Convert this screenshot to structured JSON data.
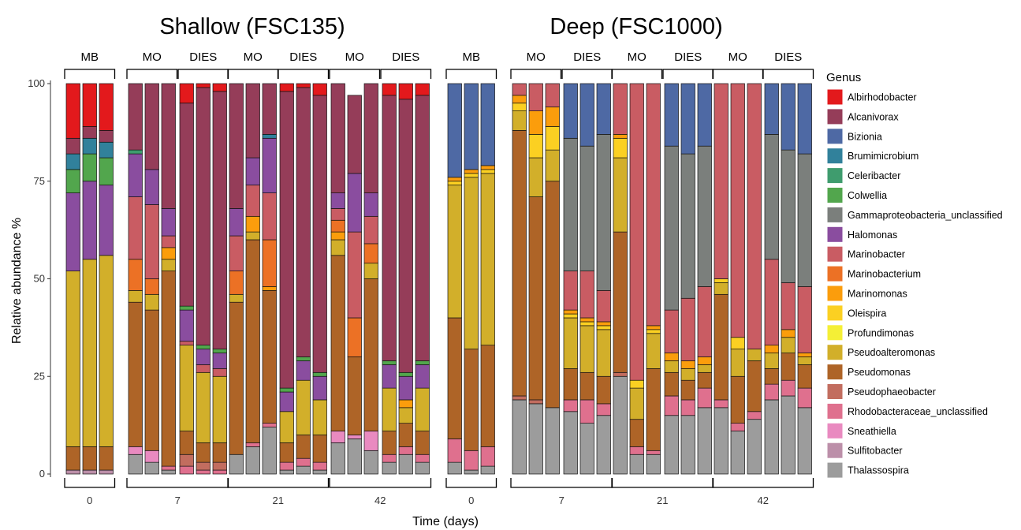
{
  "chart_data": {
    "type": "bar",
    "stacked": true,
    "ylabel": "Relative abundance %",
    "xlabel": "Time (days)",
    "ylim": [
      0,
      100
    ],
    "yticks": [
      0,
      25,
      50,
      75,
      100
    ],
    "legend": {
      "title": "Genus",
      "position": "right"
    },
    "genera": [
      "Albirhodobacter",
      "Alcanivorax",
      "Bizionia",
      "Brumimicrobium",
      "Celeribacter",
      "Colwellia",
      "Gammaproteobacteria_unclassified",
      "Halomonas",
      "Marinobacter",
      "Marinobacterium",
      "Marinomonas",
      "Oleispira",
      "Profundimonas",
      "Pseudoalteromonas",
      "Pseudomonas",
      "Pseudophaeobacter",
      "Rhodobacteraceae_unclassified",
      "Sneathiella",
      "Sulfitobacter",
      "Thalassospira"
    ],
    "colors": {
      "Albirhodobacter": "#e3191c",
      "Alcanivorax": "#953d59",
      "Bizionia": "#4e69a4",
      "Brumimicrobium": "#31819b",
      "Celeribacter": "#3f9c6e",
      "Colwellia": "#52a64d",
      "Gammaproteobacteria_unclassified": "#7b7f7c",
      "Halomonas": "#8a4d9f",
      "Marinobacter": "#c95c63",
      "Marinobacterium": "#ec7125",
      "Marinomonas": "#fb9d0c",
      "Oleispira": "#fbd022",
      "Profundimonas": "#f4ef36",
      "Pseudoalteromonas": "#d2af2a",
      "Pseudomonas": "#ae6427",
      "Pseudophaeobacter": "#c26d5f",
      "Rhodobacteraceae_unclassified": "#df708e",
      "Sneathiella": "#e98ac0",
      "Sulfitobacter": "#bc8fa9",
      "Thalassospira": "#9c9c9c"
    },
    "panels": [
      {
        "title": "Shallow (FSC135)",
        "groups": [
          {
            "label": "MB",
            "day": "0",
            "bars": [
              {
                "Sulfitobacter": 1,
                "Pseudomonas": 6,
                "Pseudoalteromonas": 45,
                "Halomonas": 20,
                "Colwellia": 6,
                "Brumimicrobium": 4,
                "Alcanivorax": 4,
                "Albirhodobacter": 14
              },
              {
                "Sulfitobacter": 1,
                "Pseudomonas": 6,
                "Pseudoalteromonas": 48,
                "Halomonas": 20,
                "Colwellia": 7,
                "Brumimicrobium": 4,
                "Alcanivorax": 3,
                "Albirhodobacter": 11
              },
              {
                "Sulfitobacter": 1,
                "Pseudomonas": 6,
                "Pseudoalteromonas": 49,
                "Halomonas": 18,
                "Colwellia": 7,
                "Brumimicrobium": 4,
                "Alcanivorax": 3,
                "Albirhodobacter": 12
              }
            ]
          },
          {
            "label": "MO",
            "day": "7",
            "bars": [
              {
                "Thalassospira": 5,
                "Sneathiella": 2,
                "Pseudomonas": 37,
                "Pseudoalteromonas": 3,
                "Marinobacterium": 8,
                "Marinobacter": 16,
                "Halomonas": 11,
                "Celeribacter": 1,
                "Alcanivorax": 17
              },
              {
                "Thalassospira": 3,
                "Sneathiella": 3,
                "Pseudomonas": 36,
                "Pseudoalteromonas": 4,
                "Marinobacterium": 4,
                "Marinobacter": 19,
                "Halomonas": 9,
                "Alcanivorax": 22
              },
              {
                "Thalassospira": 1,
                "Rhodobacteraceae_unclassified": 1,
                "Pseudomonas": 50,
                "Pseudoalteromonas": 3,
                "Marinomonas": 3,
                "Marinobacter": 3,
                "Halomonas": 7,
                "Alcanivorax": 32
              }
            ]
          },
          {
            "label": "DIES",
            "day": "7",
            "bars": [
              {
                "Rhodobacteraceae_unclassified": 2,
                "Pseudophaeobacter": 3,
                "Pseudomonas": 6,
                "Pseudoalteromonas": 22,
                "Marinobacter": 1,
                "Halomonas": 8,
                "Colwellia": 1,
                "Alcanivorax": 52,
                "Albirhodobacter": 5
              },
              {
                "Rhodobacteraceae_unclassified": 1,
                "Pseudophaeobacter": 2,
                "Pseudomonas": 5,
                "Pseudoalteromonas": 18,
                "Marinobacter": 2,
                "Halomonas": 4,
                "Colwellia": 1,
                "Alcanivorax": 66,
                "Albirhodobacter": 1
              },
              {
                "Rhodobacteraceae_unclassified": 1,
                "Pseudophaeobacter": 2,
                "Pseudomonas": 5,
                "Pseudoalteromonas": 17,
                "Marinobacter": 2,
                "Halomonas": 4,
                "Colwellia": 1,
                "Alcanivorax": 66,
                "Albirhodobacter": 2
              }
            ]
          },
          {
            "label": "MO",
            "day": "21",
            "bars": [
              {
                "Thalassospira": 5,
                "Pseudomonas": 39,
                "Pseudoalteromonas": 2,
                "Marinobacterium": 6,
                "Marinobacter": 9,
                "Halomonas": 7,
                "Alcanivorax": 32
              },
              {
                "Thalassospira": 7,
                "Rhodobacteraceae_unclassified": 1,
                "Pseudomonas": 52,
                "Pseudoalteromonas": 2,
                "Marinomonas": 4,
                "Marinobacter": 8,
                "Halomonas": 7,
                "Alcanivorax": 19
              },
              {
                "Thalassospira": 12,
                "Rhodobacteraceae_unclassified": 1,
                "Pseudomonas": 34,
                "Marinomonas": 1,
                "Marinobacterium": 12,
                "Marinobacter": 12,
                "Halomonas": 14,
                "Brumimicrobium": 1,
                "Alcanivorax": 13
              }
            ]
          },
          {
            "label": "DIES",
            "day": "21",
            "bars": [
              {
                "Thalassospira": 1,
                "Rhodobacteraceae_unclassified": 2,
                "Pseudomonas": 5,
                "Pseudoalteromonas": 8,
                "Halomonas": 5,
                "Colwellia": 1,
                "Alcanivorax": 76,
                "Albirhodobacter": 2
              },
              {
                "Thalassospira": 2,
                "Rhodobacteraceae_unclassified": 2,
                "Pseudomonas": 6,
                "Pseudoalteromonas": 14,
                "Halomonas": 5,
                "Colwellia": 1,
                "Alcanivorax": 69,
                "Albirhodobacter": 1
              },
              {
                "Thalassospira": 1,
                "Rhodobacteraceae_unclassified": 2,
                "Pseudomonas": 7,
                "Pseudoalteromonas": 9,
                "Halomonas": 6,
                "Colwellia": 1,
                "Alcanivorax": 71,
                "Albirhodobacter": 3
              }
            ]
          },
          {
            "label": "MO",
            "day": "42",
            "bars": [
              {
                "Thalassospira": 8,
                "Sneathiella": 3,
                "Pseudomonas": 45,
                "Pseudoalteromonas": 4,
                "Marinomonas": 2,
                "Marinobacterium": 3,
                "Marinobacter": 3,
                "Halomonas": 4,
                "Alcanivorax": 28
              },
              {
                "Thalassospira": 9,
                "Sneathiella": 1,
                "Pseudomonas": 20,
                "Marinobacterium": 10,
                "Marinobacter": 22,
                "Halomonas": 15,
                "Alcanivorax": 20
              },
              {
                "Thalassospira": 6,
                "Sneathiella": 5,
                "Pseudomonas": 39,
                "Pseudoalteromonas": 4,
                "Marinobacterium": 5,
                "Marinobacter": 7,
                "Halomonas": 6,
                "Alcanivorax": 28
              }
            ]
          },
          {
            "label": "DIES",
            "day": "42",
            "bars": [
              {
                "Thalassospira": 3,
                "Rhodobacteraceae_unclassified": 2,
                "Pseudomonas": 6,
                "Pseudoalteromonas": 11,
                "Halomonas": 6,
                "Colwellia": 1,
                "Alcanivorax": 68,
                "Albirhodobacter": 3
              },
              {
                "Thalassospira": 5,
                "Rhodobacteraceae_unclassified": 2,
                "Pseudomonas": 6,
                "Pseudoalteromonas": 4,
                "Marinomonas": 2,
                "Halomonas": 6,
                "Colwellia": 1,
                "Alcanivorax": 70,
                "Albirhodobacter": 4
              },
              {
                "Thalassospira": 3,
                "Rhodobacteraceae_unclassified": 2,
                "Pseudomonas": 6,
                "Pseudoalteromonas": 11,
                "Halomonas": 6,
                "Colwellia": 1,
                "Alcanivorax": 68,
                "Albirhodobacter": 3
              }
            ]
          }
        ]
      },
      {
        "title": "Deep (FSC1000)",
        "groups": [
          {
            "label": "MB",
            "day": "0",
            "bars": [
              {
                "Thalassospira": 3,
                "Rhodobacteraceae_unclassified": 6,
                "Pseudomonas": 31,
                "Pseudoalteromonas": 34,
                "Marinomonas": 1,
                "Oleispira": 1,
                "Bizionia": 24
              },
              {
                "Thalassospira": 1,
                "Rhodobacteraceae_unclassified": 5,
                "Pseudomonas": 26,
                "Pseudoalteromonas": 44,
                "Marinomonas": 1,
                "Oleispira": 1,
                "Bizionia": 22
              },
              {
                "Thalassospira": 2,
                "Rhodobacteraceae_unclassified": 5,
                "Pseudomonas": 26,
                "Pseudoalteromonas": 44,
                "Marinomonas": 1,
                "Oleispira": 1,
                "Bizionia": 21
              }
            ]
          },
          {
            "label": "MO",
            "day": "7",
            "bars": [
              {
                "Thalassospira": 19,
                "Pseudophaeobacter": 1,
                "Pseudomonas": 68,
                "Pseudoalteromonas": 5,
                "Oleispira": 2,
                "Marinomonas": 2,
                "Marinobacter": 3
              },
              {
                "Thalassospira": 18,
                "Pseudophaeobacter": 1,
                "Pseudomonas": 52,
                "Pseudoalteromonas": 10,
                "Oleispira": 6,
                "Marinomonas": 6,
                "Marinobacter": 7
              },
              {
                "Thalassospira": 17,
                "Pseudomonas": 58,
                "Pseudoalteromonas": 8,
                "Oleispira": 6,
                "Marinomonas": 5,
                "Marinobacter": 6
              }
            ]
          },
          {
            "label": "DIES",
            "day": "7",
            "bars": [
              {
                "Thalassospira": 16,
                "Rhodobacteraceae_unclassified": 3,
                "Pseudomonas": 8,
                "Pseudoalteromonas": 13,
                "Oleispira": 1,
                "Marinomonas": 1,
                "Marinobacter": 10,
                "Gammaproteobacteria_unclassified": 34,
                "Bizionia": 14
              },
              {
                "Thalassospira": 13,
                "Rhodobacteraceae_unclassified": 6,
                "Pseudomonas": 7,
                "Pseudoalteromonas": 12,
                "Oleispira": 1,
                "Marinomonas": 1,
                "Marinobacter": 12,
                "Gammaproteobacteria_unclassified": 32,
                "Bizionia": 16
              },
              {
                "Thalassospira": 15,
                "Rhodobacteraceae_unclassified": 3,
                "Pseudomonas": 7,
                "Pseudoalteromonas": 12,
                "Oleispira": 1,
                "Marinomonas": 1,
                "Marinobacter": 8,
                "Gammaproteobacteria_unclassified": 40,
                "Bizionia": 13
              }
            ]
          },
          {
            "label": "MO",
            "day": "21",
            "bars": [
              {
                "Thalassospira": 25,
                "Pseudophaeobacter": 1,
                "Pseudomonas": 36,
                "Pseudoalteromonas": 19,
                "Oleispira": 5,
                "Marinomonas": 1,
                "Marinobacter": 13
              },
              {
                "Thalassospira": 5,
                "Rhodobacteraceae_unclassified": 2,
                "Pseudomonas": 7,
                "Pseudoalteromonas": 8,
                "Oleispira": 2,
                "Marinobacter": 76
              },
              {
                "Thalassospira": 5,
                "Rhodobacteraceae_unclassified": 1,
                "Pseudomonas": 21,
                "Pseudoalteromonas": 9,
                "Marinomonas": 1,
                "Oleispira": 1,
                "Marinobacter": 62
              }
            ]
          },
          {
            "label": "DIES",
            "day": "21",
            "bars": [
              {
                "Thalassospira": 15,
                "Rhodobacteraceae_unclassified": 5,
                "Pseudomonas": 6,
                "Pseudoalteromonas": 3,
                "Marinomonas": 2,
                "Marinobacter": 11,
                "Gammaproteobacteria_unclassified": 42,
                "Bizionia": 16
              },
              {
                "Thalassospira": 15,
                "Rhodobacteraceae_unclassified": 4,
                "Pseudomonas": 5,
                "Pseudoalteromonas": 3,
                "Marinomonas": 2,
                "Marinobacter": 16,
                "Gammaproteobacteria_unclassified": 37,
                "Bizionia": 18
              },
              {
                "Thalassospira": 17,
                "Rhodobacteraceae_unclassified": 5,
                "Pseudomonas": 4,
                "Pseudoalteromonas": 2,
                "Marinomonas": 2,
                "Marinobacter": 18,
                "Gammaproteobacteria_unclassified": 36,
                "Bizionia": 16
              }
            ]
          },
          {
            "label": "MO",
            "day": "42",
            "bars": [
              {
                "Thalassospira": 17,
                "Rhodobacteraceae_unclassified": 2,
                "Pseudomonas": 27,
                "Pseudoalteromonas": 3,
                "Oleispira": 1,
                "Marinobacter": 50
              },
              {
                "Thalassospira": 11,
                "Rhodobacteraceae_unclassified": 2,
                "Pseudomonas": 12,
                "Pseudoalteromonas": 7,
                "Oleispira": 3,
                "Marinobacter": 65
              },
              {
                "Thalassospira": 14,
                "Rhodobacteraceae_unclassified": 2,
                "Pseudomonas": 13,
                "Pseudoalteromonas": 3,
                "Marinobacter": 68
              }
            ]
          },
          {
            "label": "DIES",
            "day": "42",
            "bars": [
              {
                "Thalassospira": 19,
                "Rhodobacteraceae_unclassified": 4,
                "Pseudomonas": 4,
                "Pseudoalteromonas": 4,
                "Marinomonas": 2,
                "Marinobacter": 22,
                "Gammaproteobacteria_unclassified": 32,
                "Bizionia": 13
              },
              {
                "Thalassospira": 20,
                "Rhodobacteraceae_unclassified": 4,
                "Pseudomonas": 7,
                "Pseudoalteromonas": 4,
                "Marinomonas": 2,
                "Marinobacter": 12,
                "Gammaproteobacteria_unclassified": 34,
                "Bizionia": 17
              },
              {
                "Thalassospira": 17,
                "Rhodobacteraceae_unclassified": 5,
                "Pseudomonas": 6,
                "Pseudoalteromonas": 2,
                "Marinomonas": 1,
                "Marinobacter": 17,
                "Gammaproteobacteria_unclassified": 34,
                "Bizionia": 18
              }
            ]
          }
        ]
      }
    ]
  }
}
